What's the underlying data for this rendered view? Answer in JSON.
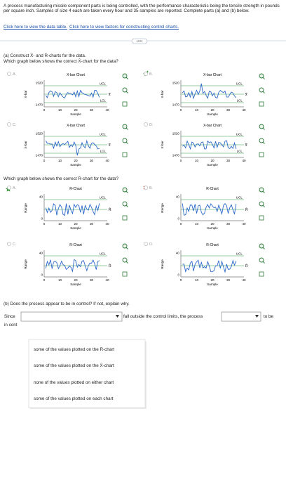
{
  "intro": "A process manufacturing missile component parts is being controlled, with the performance characteristic being the tensile strength in pounds per square inch. Samples of size 4 each are taken every hour and 35 samples are reported. Complete parts (a) and (b) below.",
  "links": [
    "Click here to view the data table.",
    "Click here to view factors for constructing control charts."
  ],
  "part_a": {
    "title": "(a) Construct X̄- and R-charts for the data.",
    "xbar_question": "Which graph below shows the correct X̄-chart for the data?",
    "r_question": "Which graph below shows the correct R-chart for the data?"
  },
  "options": [
    "A.",
    "B.",
    "C.",
    "D."
  ],
  "xbar_chart": {
    "title": "X-bar Chart",
    "y_label": "X-bar",
    "x_label": "Sample",
    "yticks": [
      1520,
      1470
    ],
    "xticks": [
      0,
      10,
      20,
      30,
      40
    ],
    "ucl": "UCL",
    "lcl": "LCL",
    "center": "x̿"
  },
  "r_chart": {
    "title": "R-Chart",
    "y_label": "Range",
    "x_label": "Sample",
    "yticks": [
      40,
      0
    ],
    "xticks": [
      0,
      10,
      20,
      30,
      40
    ],
    "ucl": "UCL",
    "center": "R̄"
  },
  "part_b": {
    "title": "(b) Does the process appear to be in control? If not, explain why.",
    "since": "Since",
    "middle": "fall outside the control limits, the process",
    "end": "to be",
    "continued": "in cont",
    "dropdown_options": [
      "some of the values plotted on the R-chart",
      "some of the values plotted on the X̄-chart",
      "none of the values plotted on either chart",
      "some of the values plotted on each chart"
    ]
  }
}
